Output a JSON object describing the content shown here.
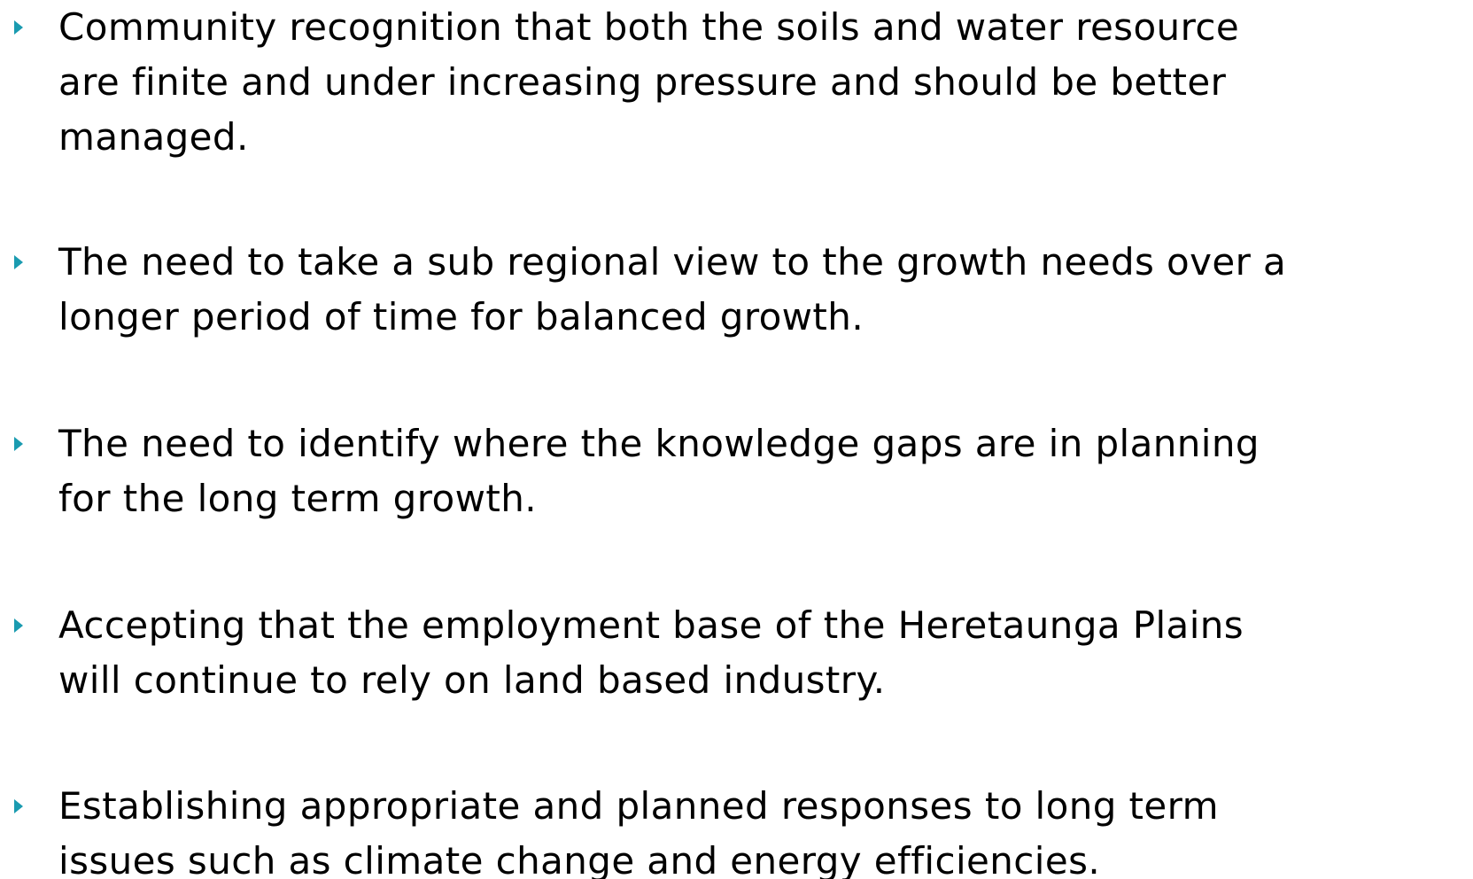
{
  "bullets": [
    {
      "lines": [
        "Community recognition that both the soils and water resource",
        "are finite and under increasing pressure and should be better",
        "managed."
      ]
    },
    {
      "lines": [
        "The need to take a sub regional view to the growth needs over a",
        "longer period of time for balanced growth."
      ]
    },
    {
      "lines": [
        "The need to identify where the knowledge gaps are in planning",
        "for the long term growth."
      ]
    },
    {
      "lines": [
        "Accepting that the employment base of the Heretaunga Plains",
        "will continue to rely on land based industry."
      ]
    },
    {
      "lines": [
        "Establishing appropriate and planned responses to long term",
        "issues such as climate change and energy efficiencies."
      ]
    }
  ]
}
